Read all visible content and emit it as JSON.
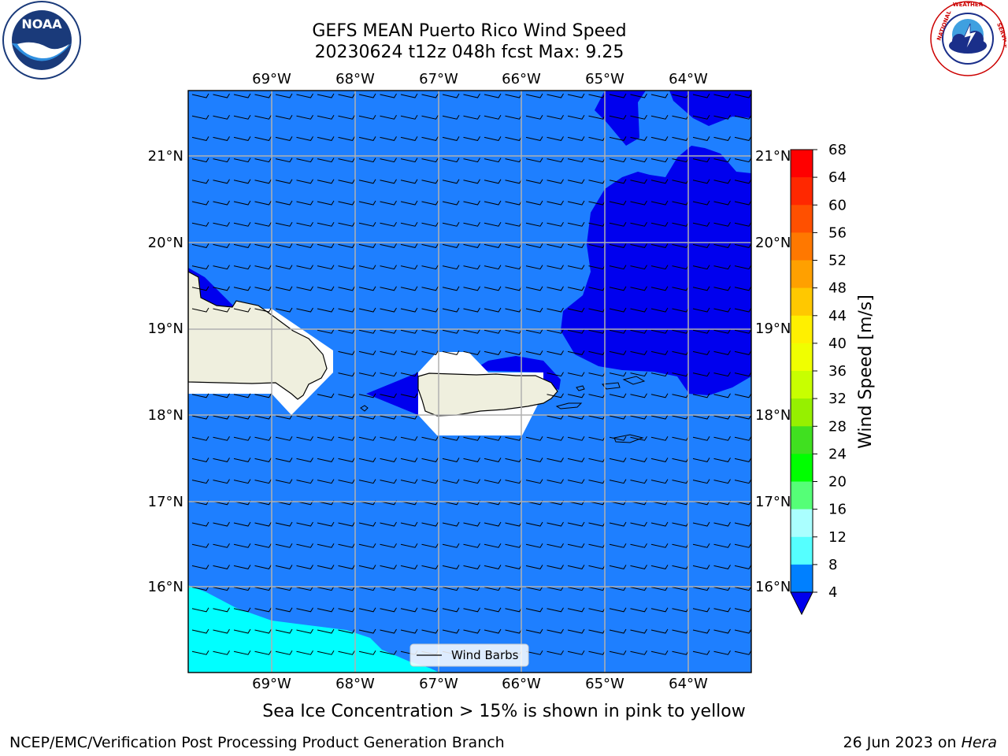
{
  "title": {
    "line1": "GEFS MEAN Puerto Rico Wind Speed",
    "line2": "20230624 t12z 048h fcst   Max: 9.25"
  },
  "map": {
    "lon_labels": [
      "69°W",
      "68°W",
      "67°W",
      "66°W",
      "65°W",
      "64°W"
    ],
    "lat_labels": [
      "21°N",
      "20°N",
      "19°N",
      "18°N",
      "17°N",
      "16°N"
    ],
    "legend_label": "Wind Barbs"
  },
  "colorbar": {
    "label": "Wind Speed [m/s]",
    "ticks": [
      "68",
      "64",
      "60",
      "56",
      "52",
      "48",
      "44",
      "40",
      "36",
      "32",
      "28",
      "24",
      "20",
      "16",
      "12",
      "8",
      "4"
    ],
    "colors": [
      "#ff0000",
      "#ff2800",
      "#ff5000",
      "#ff7800",
      "#ffa000",
      "#ffc800",
      "#fff000",
      "#f0ff00",
      "#c8ff00",
      "#96f000",
      "#40e020",
      "#00ff00",
      "#55ff77",
      "#aaffff",
      "#55ffff",
      "#00ffff",
      "#0080ff"
    ],
    "extend_color": "#0000ee"
  },
  "field_colors": {
    "ocean": "#1e7fff",
    "low": "#0000ee",
    "mid": "#00ffff",
    "land": "#efefde"
  },
  "caption": "Sea Ice Concentration > 15% is shown in pink to yellow",
  "footer": {
    "left": "NCEP/EMC/Verification Post Processing Product Generation Branch",
    "date": "26 Jun 2023 on ",
    "machine": "Hera"
  },
  "logos": {
    "noaa": "NOAA",
    "nws": "NATIONAL WEATHER SERVICE"
  }
}
